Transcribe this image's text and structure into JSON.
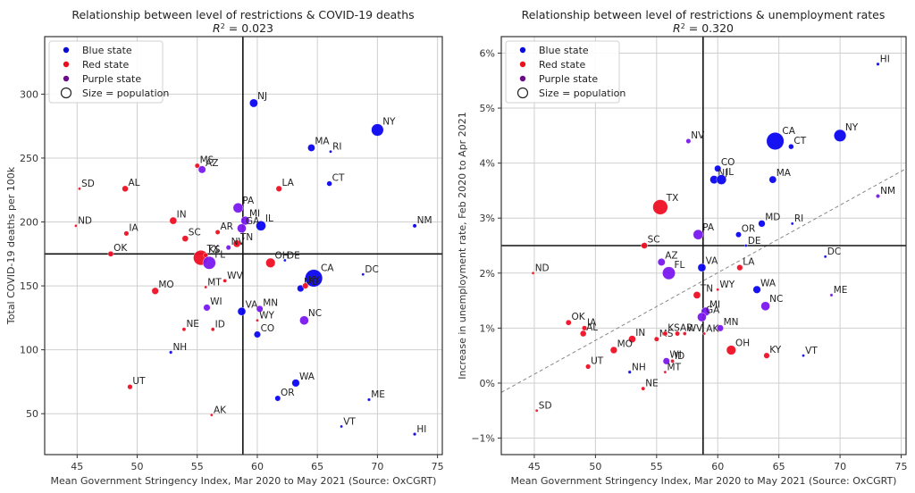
{
  "chart_data": [
    {
      "type": "scatter",
      "title": "Relationship between level of restrictions & COVID-19 deaths",
      "subtitle_prefix": "R",
      "subtitle_sup": "2",
      "subtitle_value": " = 0.023",
      "xlabel": "Mean Government Stringency Index, Mar 2020 to May 2021 (Source: OxCGRT)",
      "ylabel": "Total COVID-19 deaths per 100k",
      "xlim": [
        42.3,
        75.4
      ],
      "ylim": [
        18,
        345
      ],
      "xticks": [
        45,
        50,
        55,
        60,
        65,
        70,
        75
      ],
      "yticks": [
        50,
        100,
        150,
        200,
        250,
        300
      ],
      "ytick_format": "{v}",
      "grid": true,
      "legend_position": "top-left",
      "mean_lines": {
        "x": 58.8,
        "y": 175
      },
      "trendline": null,
      "points": [
        {
          "state": "NJ",
          "x": 59.7,
          "y": 293,
          "party": "blue",
          "pop": 9
        },
        {
          "state": "NY",
          "x": 70.0,
          "y": 272,
          "party": "blue",
          "pop": 19.5
        },
        {
          "state": "MA",
          "x": 64.5,
          "y": 258,
          "party": "blue",
          "pop": 7
        },
        {
          "state": "RI",
          "x": 66.1,
          "y": 255,
          "party": "blue",
          "pop": 1.1
        },
        {
          "state": "MS",
          "x": 55.0,
          "y": 244,
          "party": "red",
          "pop": 3
        },
        {
          "state": "AZ",
          "x": 55.4,
          "y": 241,
          "party": "purple",
          "pop": 7.3
        },
        {
          "state": "CT",
          "x": 66.0,
          "y": 230,
          "party": "blue",
          "pop": 3.6
        },
        {
          "state": "SD",
          "x": 45.2,
          "y": 226,
          "party": "red",
          "pop": 0.9
        },
        {
          "state": "AL",
          "x": 49.0,
          "y": 226,
          "party": "red",
          "pop": 5
        },
        {
          "state": "LA",
          "x": 61.8,
          "y": 226,
          "party": "red",
          "pop": 4.6
        },
        {
          "state": "PA",
          "x": 58.4,
          "y": 211,
          "party": "purple",
          "pop": 13
        },
        {
          "state": "MI",
          "x": 59.0,
          "y": 201,
          "party": "purple",
          "pop": 10
        },
        {
          "state": "IN",
          "x": 53.0,
          "y": 201,
          "party": "red",
          "pop": 6.8
        },
        {
          "state": "IL",
          "x": 60.3,
          "y": 197,
          "party": "blue",
          "pop": 12.7
        },
        {
          "state": "ND",
          "x": 44.9,
          "y": 197,
          "party": "red",
          "pop": 0.8
        },
        {
          "state": "GA",
          "x": 58.7,
          "y": 195,
          "party": "purple",
          "pop": 10.6
        },
        {
          "state": "AR",
          "x": 56.7,
          "y": 192,
          "party": "red",
          "pop": 3
        },
        {
          "state": "IA",
          "x": 49.1,
          "y": 191,
          "party": "red",
          "pop": 3.2
        },
        {
          "state": "SC",
          "x": 54.0,
          "y": 187,
          "party": "red",
          "pop": 5.1
        },
        {
          "state": "TN",
          "x": 58.3,
          "y": 183,
          "party": "red",
          "pop": 6.9
        },
        {
          "state": "NV",
          "x": 57.6,
          "y": 180,
          "party": "purple",
          "pop": 3.1
        },
        {
          "state": "TX",
          "x": 55.3,
          "y": 172,
          "party": "red",
          "pop": 29
        },
        {
          "state": "KS",
          "x": 55.7,
          "y": 174,
          "party": "red",
          "pop": 2.9
        },
        {
          "state": "FL",
          "x": 56.0,
          "y": 168,
          "party": "purple",
          "pop": 21.5
        },
        {
          "state": "OH",
          "x": 61.1,
          "y": 168,
          "party": "red",
          "pop": 11.7
        },
        {
          "state": "DE",
          "x": 62.3,
          "y": 170,
          "party": "blue",
          "pop": 1
        },
        {
          "state": "CA",
          "x": 64.7,
          "y": 156,
          "party": "blue",
          "pop": 39.5
        },
        {
          "state": "DC",
          "x": 68.8,
          "y": 159,
          "party": "blue",
          "pop": 0.7
        },
        {
          "state": "MD",
          "x": 63.6,
          "y": 148,
          "party": "blue",
          "pop": 6.2
        },
        {
          "state": "KY",
          "x": 64.0,
          "y": 150,
          "party": "red",
          "pop": 4.5
        },
        {
          "state": "MO",
          "x": 51.5,
          "y": 146,
          "party": "red",
          "pop": 6.2
        },
        {
          "state": "MT",
          "x": 55.7,
          "y": 149,
          "party": "red",
          "pop": 1.1
        },
        {
          "state": "WV",
          "x": 57.3,
          "y": 154,
          "party": "red",
          "pop": 1.8
        },
        {
          "state": "WI",
          "x": 55.8,
          "y": 133,
          "party": "purple",
          "pop": 5.9
        },
        {
          "state": "VA",
          "x": 58.7,
          "y": 130,
          "party": "blue",
          "pop": 8.6
        },
        {
          "state": "MN",
          "x": 60.2,
          "y": 132,
          "party": "purple",
          "pop": 5.7
        },
        {
          "state": "NC",
          "x": 63.9,
          "y": 123,
          "party": "purple",
          "pop": 10.5
        },
        {
          "state": "WY",
          "x": 60.0,
          "y": 123,
          "party": "red",
          "pop": 0.6
        },
        {
          "state": "NE",
          "x": 53.9,
          "y": 116,
          "party": "red",
          "pop": 1.9
        },
        {
          "state": "ID",
          "x": 56.3,
          "y": 116,
          "party": "red",
          "pop": 1.8
        },
        {
          "state": "CO",
          "x": 60.0,
          "y": 112,
          "party": "blue",
          "pop": 5.8
        },
        {
          "state": "NH",
          "x": 52.8,
          "y": 98,
          "party": "blue",
          "pop": 1.4
        },
        {
          "state": "WA",
          "x": 63.2,
          "y": 74,
          "party": "blue",
          "pop": 7.7
        },
        {
          "state": "UT",
          "x": 49.4,
          "y": 71,
          "party": "red",
          "pop": 3.3
        },
        {
          "state": "OR",
          "x": 61.7,
          "y": 62,
          "party": "blue",
          "pop": 4.2
        },
        {
          "state": "ME",
          "x": 69.3,
          "y": 61,
          "party": "blue",
          "pop": 1.3
        },
        {
          "state": "AK",
          "x": 56.2,
          "y": 49,
          "party": "red",
          "pop": 0.7
        },
        {
          "state": "VT",
          "x": 67.0,
          "y": 40,
          "party": "blue",
          "pop": 0.6
        },
        {
          "state": "HI",
          "x": 73.1,
          "y": 34,
          "party": "blue",
          "pop": 1.4
        },
        {
          "state": "NM",
          "x": 73.1,
          "y": 197,
          "party": "blue",
          "pop": 2.1
        },
        {
          "state": "OK",
          "x": 47.8,
          "y": 175,
          "party": "red",
          "pop": 4
        }
      ]
    },
    {
      "type": "scatter",
      "title": "Relationship between level of restrictions & unemployment rates",
      "subtitle_prefix": "R",
      "subtitle_sup": "2",
      "subtitle_value": " = 0.320",
      "xlabel": "Mean Government Stringency Index, Mar 2020 to May 2021 (Source: OxCGRT)",
      "ylabel": "Increase in unemployment rate, Feb 2020 to Apr 2021",
      "xlim": [
        42.3,
        75.4
      ],
      "ylim": [
        -1.3,
        6.3
      ],
      "xticks": [
        45,
        50,
        55,
        60,
        65,
        70,
        75
      ],
      "yticks": [
        -1,
        0,
        1,
        2,
        3,
        4,
        5,
        6
      ],
      "ytick_format": "{v}%",
      "grid": true,
      "legend_position": "top-left",
      "mean_lines": {
        "x": 58.8,
        "y": 2.5
      },
      "trendline": {
        "x": [
          42.3,
          75.4
        ],
        "y": [
          -0.17,
          3.9
        ],
        "style": "dashed"
      },
      "points": [
        {
          "state": "HI",
          "x": 73.1,
          "y": 5.8,
          "party": "blue",
          "pop": 1.4
        },
        {
          "state": "CA",
          "x": 64.7,
          "y": 4.4,
          "party": "blue",
          "pop": 39.5
        },
        {
          "state": "NY",
          "x": 70.0,
          "y": 4.5,
          "party": "blue",
          "pop": 19.5
        },
        {
          "state": "CT",
          "x": 66.0,
          "y": 4.3,
          "party": "blue",
          "pop": 3.6
        },
        {
          "state": "NV",
          "x": 57.6,
          "y": 4.4,
          "party": "purple",
          "pop": 3.1
        },
        {
          "state": "CO",
          "x": 60.0,
          "y": 3.9,
          "party": "blue",
          "pop": 5.8
        },
        {
          "state": "NJ",
          "x": 59.7,
          "y": 3.7,
          "party": "blue",
          "pop": 9
        },
        {
          "state": "IL",
          "x": 60.3,
          "y": 3.7,
          "party": "blue",
          "pop": 12.7
        },
        {
          "state": "MA",
          "x": 64.5,
          "y": 3.7,
          "party": "blue",
          "pop": 7
        },
        {
          "state": "NM",
          "x": 73.1,
          "y": 3.4,
          "party": "purple",
          "pop": 2.1
        },
        {
          "state": "TX",
          "x": 55.3,
          "y": 3.2,
          "party": "red",
          "pop": 29
        },
        {
          "state": "MD",
          "x": 63.6,
          "y": 2.9,
          "party": "blue",
          "pop": 6.2
        },
        {
          "state": "RI",
          "x": 66.1,
          "y": 2.9,
          "party": "blue",
          "pop": 1.1
        },
        {
          "state": "OR",
          "x": 61.7,
          "y": 2.7,
          "party": "blue",
          "pop": 4.2
        },
        {
          "state": "PA",
          "x": 58.4,
          "y": 2.7,
          "party": "purple",
          "pop": 13
        },
        {
          "state": "DE",
          "x": 62.3,
          "y": 2.5,
          "party": "blue",
          "pop": 1
        },
        {
          "state": "SC",
          "x": 54.0,
          "y": 2.5,
          "party": "red",
          "pop": 5.1
        },
        {
          "state": "DC",
          "x": 68.8,
          "y": 2.3,
          "party": "blue",
          "pop": 0.7
        },
        {
          "state": "AZ",
          "x": 55.4,
          "y": 2.2,
          "party": "purple",
          "pop": 7.3
        },
        {
          "state": "VA",
          "x": 58.7,
          "y": 2.1,
          "party": "blue",
          "pop": 8.6
        },
        {
          "state": "LA",
          "x": 61.8,
          "y": 2.1,
          "party": "red",
          "pop": 4.6
        },
        {
          "state": "FL",
          "x": 56.0,
          "y": 2.0,
          "party": "purple",
          "pop": 21.5
        },
        {
          "state": "ND",
          "x": 44.9,
          "y": 2.0,
          "party": "red",
          "pop": 0.8
        },
        {
          "state": "WY",
          "x": 60.0,
          "y": 1.7,
          "party": "red",
          "pop": 0.6
        },
        {
          "state": "WA",
          "x": 63.2,
          "y": 1.7,
          "party": "blue",
          "pop": 7.7
        },
        {
          "state": "ME",
          "x": 69.3,
          "y": 1.6,
          "party": "purple",
          "pop": 1.3
        },
        {
          "state": "TN",
          "x": 58.3,
          "y": 1.6,
          "party": "red",
          "pop": 6.9
        },
        {
          "state": "NC",
          "x": 63.9,
          "y": 1.4,
          "party": "purple",
          "pop": 10.5
        },
        {
          "state": "MI",
          "x": 59.0,
          "y": 1.3,
          "party": "purple",
          "pop": 10
        },
        {
          "state": "GA",
          "x": 58.7,
          "y": 1.2,
          "party": "purple",
          "pop": 10.6
        },
        {
          "state": "OK",
          "x": 47.8,
          "y": 1.1,
          "party": "red",
          "pop": 4
        },
        {
          "state": "IA",
          "x": 49.1,
          "y": 1.0,
          "party": "red",
          "pop": 3.2
        },
        {
          "state": "MN",
          "x": 60.2,
          "y": 1.0,
          "party": "purple",
          "pop": 5.7
        },
        {
          "state": "AL",
          "x": 49.0,
          "y": 0.9,
          "party": "red",
          "pop": 5
        },
        {
          "state": "AR",
          "x": 56.7,
          "y": 0.9,
          "party": "red",
          "pop": 3
        },
        {
          "state": "WV",
          "x": 57.3,
          "y": 0.9,
          "party": "red",
          "pop": 1.8
        },
        {
          "state": "AK",
          "x": 58.9,
          "y": 0.9,
          "party": "red",
          "pop": 0.7
        },
        {
          "state": "IN",
          "x": 53.0,
          "y": 0.8,
          "party": "red",
          "pop": 6.8
        },
        {
          "state": "MS",
          "x": 55.0,
          "y": 0.8,
          "party": "red",
          "pop": 3
        },
        {
          "state": "MO",
          "x": 51.5,
          "y": 0.6,
          "party": "red",
          "pop": 6.2
        },
        {
          "state": "OH",
          "x": 61.1,
          "y": 0.6,
          "party": "red",
          "pop": 11.7
        },
        {
          "state": "KY",
          "x": 64.0,
          "y": 0.5,
          "party": "red",
          "pop": 4.5
        },
        {
          "state": "VT",
          "x": 67.0,
          "y": 0.5,
          "party": "blue",
          "pop": 0.6
        },
        {
          "state": "WI",
          "x": 55.8,
          "y": 0.4,
          "party": "purple",
          "pop": 5.9
        },
        {
          "state": "ID",
          "x": 56.3,
          "y": 0.4,
          "party": "red",
          "pop": 1.8
        },
        {
          "state": "UT",
          "x": 49.4,
          "y": 0.3,
          "party": "red",
          "pop": 3.3
        },
        {
          "state": "MT",
          "x": 55.7,
          "y": 0.2,
          "party": "red",
          "pop": 1.1
        },
        {
          "state": "NH",
          "x": 52.8,
          "y": 0.2,
          "party": "blue",
          "pop": 1.4
        },
        {
          "state": "NE",
          "x": 53.9,
          "y": -0.1,
          "party": "red",
          "pop": 1.9
        },
        {
          "state": "SD",
          "x": 45.2,
          "y": -0.5,
          "party": "red",
          "pop": 0.9
        },
        {
          "state": "KS",
          "x": 55.7,
          "y": 0.9,
          "party": "red",
          "pop": 2.9
        }
      ]
    }
  ],
  "legend": [
    {
      "label": "Blue state",
      "color": "#0a0ad6"
    },
    {
      "label": "Red state",
      "color": "#e8101e"
    },
    {
      "label": "Purple state",
      "color": "#6a0a8a"
    },
    {
      "label": "Size = population",
      "color": "none"
    }
  ],
  "colors": {
    "blue": "#0b05f0",
    "red": "#ee0f24",
    "purple": "#7a18ee",
    "axis": "#333333",
    "grid": "#cfcfcf",
    "mean_line": "#111111",
    "trend": "#888888"
  }
}
